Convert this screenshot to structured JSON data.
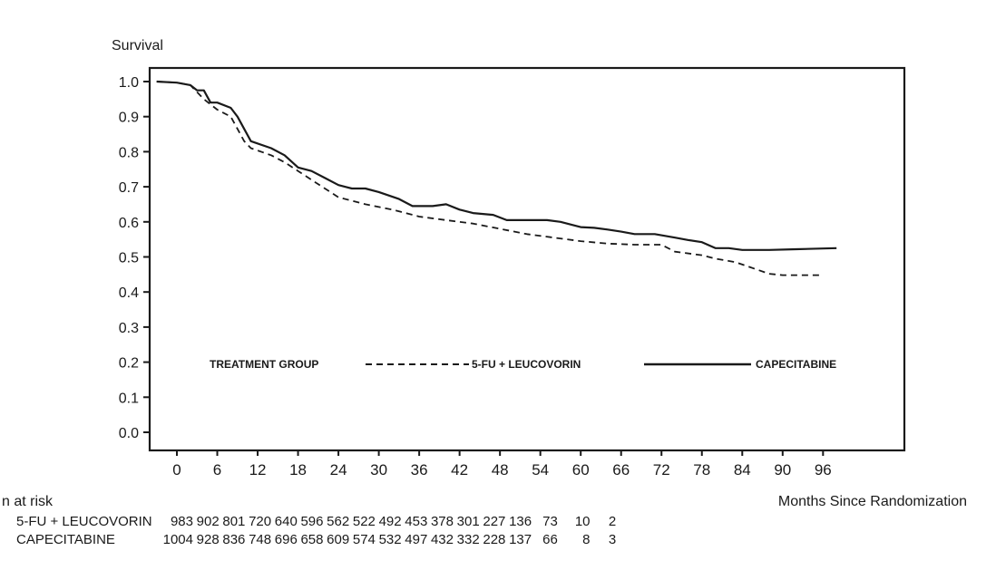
{
  "chart_data": {
    "type": "line",
    "title": "",
    "ylabel": "Survival",
    "xlabel": "Months Since Randomization",
    "ylim": [
      0.0,
      1.0
    ],
    "xlim": [
      -3,
      100
    ],
    "yticks": [
      "0.0",
      "0.1",
      "0.2",
      "0.3",
      "0.4",
      "0.5",
      "0.6",
      "0.7",
      "0.8",
      "0.9",
      "1.0"
    ],
    "xticks": [
      "0",
      "6",
      "12",
      "18",
      "24",
      "30",
      "36",
      "42",
      "48",
      "54",
      "60",
      "66",
      "72",
      "78",
      "84",
      "90",
      "96"
    ],
    "grid": false,
    "legend": {
      "title": "TREATMENT GROUP",
      "placement": "inside-bottom",
      "entries": [
        "5-FU + LEUCOVORIN",
        "CAPECITABINE"
      ]
    },
    "series": [
      {
        "name": "5-FU + LEUCOVORIN",
        "style": "dashed",
        "points": [
          [
            -3,
            1.0
          ],
          [
            0,
            0.997
          ],
          [
            2,
            0.99
          ],
          [
            4,
            0.95
          ],
          [
            6,
            0.92
          ],
          [
            8,
            0.9
          ],
          [
            10,
            0.83
          ],
          [
            11,
            0.81
          ],
          [
            14,
            0.79
          ],
          [
            16,
            0.77
          ],
          [
            18,
            0.745
          ],
          [
            20,
            0.72
          ],
          [
            24,
            0.67
          ],
          [
            28,
            0.65
          ],
          [
            32,
            0.635
          ],
          [
            36,
            0.615
          ],
          [
            40,
            0.605
          ],
          [
            44,
            0.595
          ],
          [
            48,
            0.58
          ],
          [
            52,
            0.565
          ],
          [
            56,
            0.555
          ],
          [
            60,
            0.545
          ],
          [
            64,
            0.538
          ],
          [
            68,
            0.535
          ],
          [
            72,
            0.535
          ],
          [
            74,
            0.515
          ],
          [
            78,
            0.505
          ],
          [
            80,
            0.495
          ],
          [
            83,
            0.485
          ],
          [
            86,
            0.465
          ],
          [
            88,
            0.452
          ],
          [
            90,
            0.448
          ],
          [
            93,
            0.448
          ],
          [
            96,
            0.448
          ]
        ]
      },
      {
        "name": "CAPECITABINE",
        "style": "solid",
        "points": [
          [
            -3,
            1.0
          ],
          [
            0,
            0.997
          ],
          [
            2,
            0.99
          ],
          [
            3,
            0.975
          ],
          [
            4,
            0.975
          ],
          [
            5,
            0.94
          ],
          [
            6,
            0.94
          ],
          [
            8,
            0.925
          ],
          [
            9,
            0.9
          ],
          [
            11,
            0.83
          ],
          [
            14,
            0.81
          ],
          [
            16,
            0.79
          ],
          [
            18,
            0.755
          ],
          [
            20,
            0.745
          ],
          [
            22,
            0.725
          ],
          [
            24,
            0.705
          ],
          [
            26,
            0.695
          ],
          [
            28,
            0.695
          ],
          [
            30,
            0.685
          ],
          [
            33,
            0.665
          ],
          [
            35,
            0.645
          ],
          [
            38,
            0.645
          ],
          [
            40,
            0.65
          ],
          [
            42,
            0.635
          ],
          [
            44,
            0.625
          ],
          [
            47,
            0.62
          ],
          [
            49,
            0.605
          ],
          [
            52,
            0.605
          ],
          [
            55,
            0.605
          ],
          [
            57,
            0.6
          ],
          [
            60,
            0.585
          ],
          [
            62,
            0.583
          ],
          [
            64,
            0.578
          ],
          [
            66,
            0.572
          ],
          [
            68,
            0.565
          ],
          [
            71,
            0.565
          ],
          [
            74,
            0.555
          ],
          [
            76,
            0.548
          ],
          [
            78,
            0.542
          ],
          [
            80,
            0.525
          ],
          [
            82,
            0.525
          ],
          [
            84,
            0.52
          ],
          [
            88,
            0.52
          ],
          [
            92,
            0.522
          ],
          [
            98,
            0.525
          ]
        ]
      }
    ]
  },
  "risk_table": {
    "header": "n at risk",
    "rows": [
      {
        "label": "5-FU + LEUCOVORIN",
        "values": [
          "983",
          "902",
          "801",
          "720",
          "640",
          "596",
          "562",
          "522",
          "492",
          "453",
          "378",
          "301",
          "227",
          "136",
          "73",
          "10",
          "2"
        ]
      },
      {
        "label": "CAPECITABINE",
        "values": [
          "1004",
          "928",
          "836",
          "748",
          "696",
          "658",
          "609",
          "574",
          "532",
          "497",
          "432",
          "332",
          "228",
          "137",
          "66",
          "8",
          "3"
        ]
      }
    ]
  }
}
